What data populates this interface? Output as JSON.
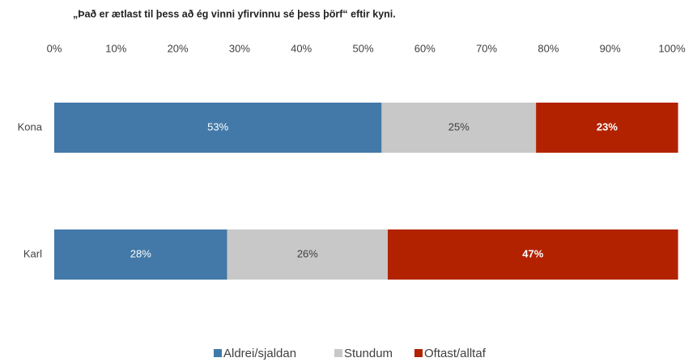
{
  "chart_data": {
    "type": "stacked_bar_horizontal",
    "title": "„Það er ætlast til þess að ég vinni yfirvinnu sé þess þörf“ eftir kyni.",
    "categories": [
      "Kona",
      "Karl"
    ],
    "series": [
      {
        "name": "Aldrei/sjaldan",
        "color": "#4279a8",
        "values": [
          53,
          28
        ],
        "value_labels": [
          "53%",
          "28%"
        ]
      },
      {
        "name": "Stundum",
        "color": "#c8c8c8",
        "values": [
          25,
          26
        ],
        "value_labels": [
          "25%",
          "26%"
        ]
      },
      {
        "name": "Oftast/alltaf",
        "color": "#b22200",
        "values": [
          23,
          47
        ],
        "value_labels": [
          "23%",
          "47%"
        ]
      }
    ],
    "xlim": [
      0,
      100
    ],
    "xticks": [
      {
        "value": 0,
        "label": "0%"
      },
      {
        "value": 10,
        "label": "10%"
      },
      {
        "value": 20,
        "label": "20%"
      },
      {
        "value": 30,
        "label": "30%"
      },
      {
        "value": 40,
        "label": "40%"
      },
      {
        "value": 50,
        "label": "50%"
      },
      {
        "value": 60,
        "label": "60%"
      },
      {
        "value": 70,
        "label": "70%"
      },
      {
        "value": 80,
        "label": "80%"
      },
      {
        "value": 90,
        "label": "90%"
      },
      {
        "value": 100,
        "label": "100%"
      }
    ],
    "legend": "bottom"
  }
}
